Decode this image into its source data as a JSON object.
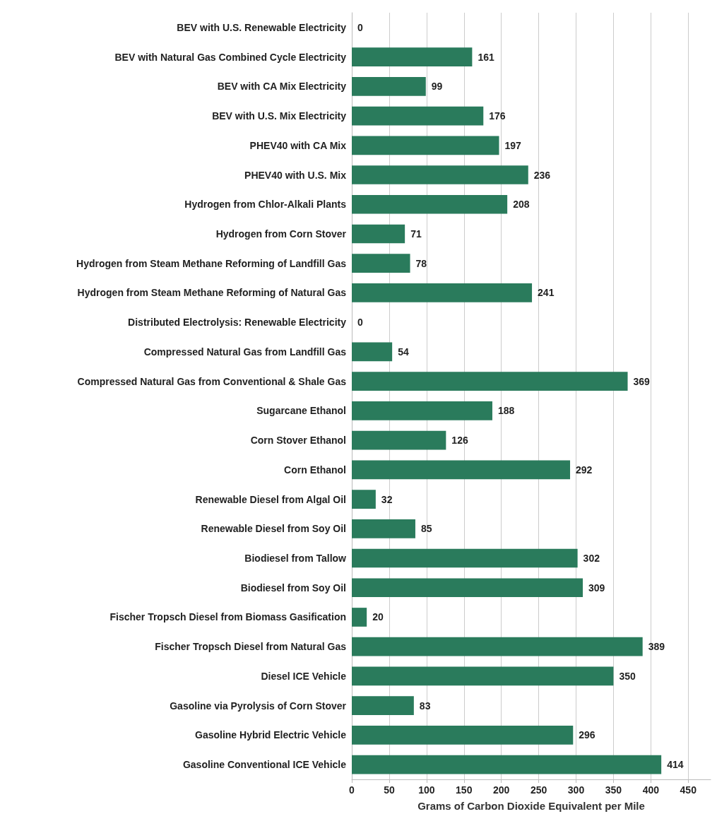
{
  "chart_data": {
    "type": "bar",
    "orientation": "horizontal",
    "xlabel": "Grams of Carbon Dioxide Equivalent per Mile",
    "categories": [
      "BEV with U.S. Renewable Electricity",
      "BEV with Natural Gas Combined Cycle Electricity",
      "BEV with CA Mix Electricity",
      "BEV with U.S. Mix Electricity",
      "PHEV40 with CA Mix",
      "PHEV40 with U.S. Mix",
      "Hydrogen from Chlor-Alkali Plants",
      "Hydrogen from Corn Stover",
      "Hydrogen from Steam Methane Reforming of Landfill Gas",
      "Hydrogen from Steam Methane Reforming of Natural Gas",
      "Distributed Electrolysis: Renewable Electricity",
      "Compressed Natural Gas from Landfill Gas",
      "Compressed Natural Gas from Conventional & Shale Gas",
      "Sugarcane Ethanol",
      "Corn Stover Ethanol",
      "Corn Ethanol",
      "Renewable Diesel from Algal Oil",
      "Renewable Diesel from Soy Oil",
      "Biodiesel from Tallow",
      "Biodiesel from Soy Oil",
      "Fischer Tropsch Diesel from Biomass Gasification",
      "Fischer Tropsch Diesel from Natural Gas",
      "Diesel ICE Vehicle",
      "Gasoline via Pyrolysis of Corn Stover",
      "Gasoline Hybrid Electric Vehicle",
      "Gasoline Conventional ICE Vehicle"
    ],
    "values": [
      0,
      161,
      99,
      176,
      197,
      236,
      208,
      71,
      78,
      241,
      0,
      54,
      369,
      188,
      126,
      292,
      32,
      85,
      302,
      309,
      20,
      389,
      350,
      83,
      296,
      414
    ],
    "color": "#2a7b5c",
    "xlim": [
      0,
      480
    ],
    "xticks": [
      0,
      50,
      100,
      150,
      200,
      250,
      300,
      350,
      400,
      450
    ],
    "grid": "x",
    "data_labels": true
  }
}
